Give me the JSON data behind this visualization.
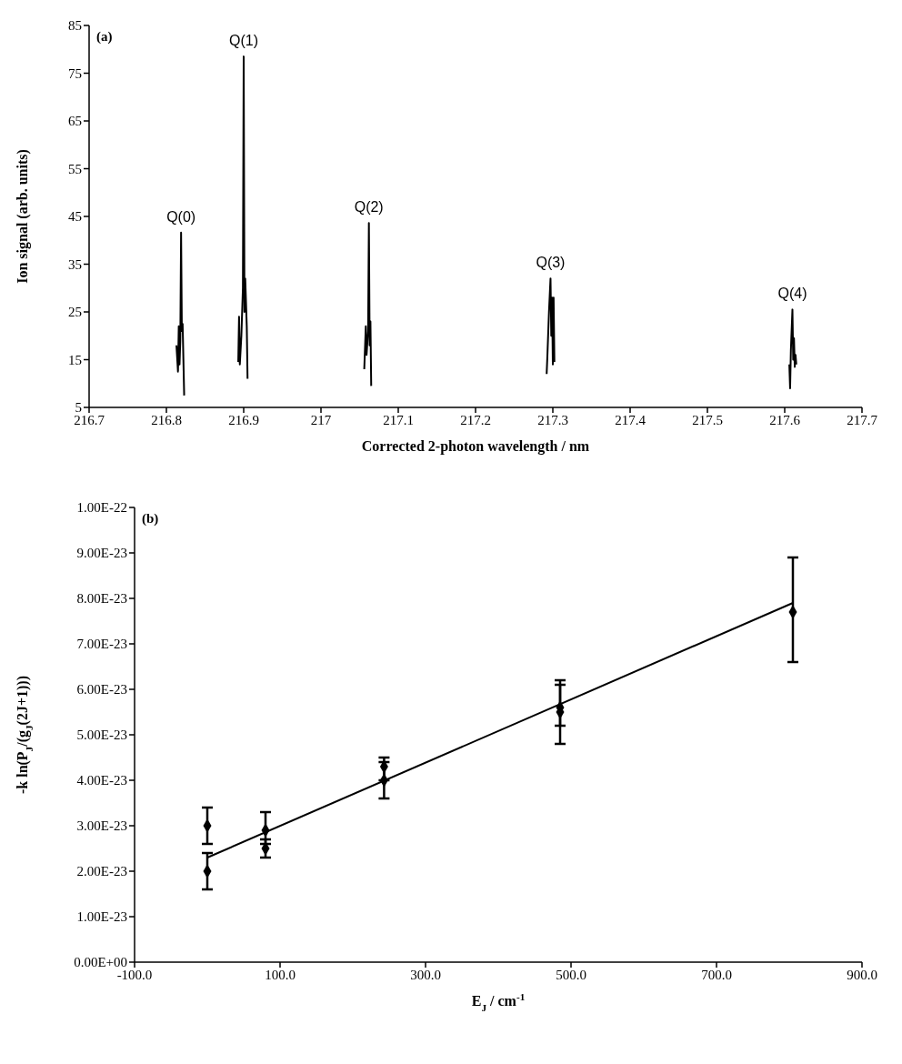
{
  "chart_data": [
    {
      "type": "line",
      "xlabel": "Corrected 2-photon wavelength / nm",
      "ylabel": "Ion signal (arb. units)",
      "color": "#000000",
      "marker": "none",
      "x": [
        216.813,
        216.815,
        216.816,
        216.817,
        216.818,
        216.819,
        216.82,
        216.821,
        216.822,
        216.823,
        216.86,
        216.893,
        216.894,
        216.895,
        216.897,
        216.899,
        216.9,
        216.901,
        216.902,
        216.904,
        216.905,
        216.98,
        217.056,
        217.058,
        217.059,
        217.061,
        217.062,
        217.063,
        217.064,
        217.065,
        217.2,
        217.292,
        217.293,
        217.295,
        217.297,
        217.298,
        217.299,
        217.3,
        217.301,
        217.302,
        217.45,
        217.606,
        217.607,
        217.608,
        217.61,
        217.611,
        217.612,
        217.613,
        217.614,
        217.615
      ],
      "values": [
        18,
        12.5,
        22,
        14,
        19,
        41.6,
        21,
        22.5,
        15,
        7.5,
        null,
        14.5,
        24,
        14,
        20,
        30,
        78.5,
        25,
        32,
        22,
        11,
        null,
        13,
        22,
        16,
        21,
        43.6,
        18,
        23,
        9.5,
        null,
        12,
        16,
        25,
        32,
        20,
        28,
        14,
        28,
        14.5,
        null,
        14,
        9,
        17,
        25.5,
        15,
        19.5,
        13.5,
        16,
        14
      ],
      "xlim": [
        216.7,
        217.7
      ],
      "xticks": [
        216.7,
        216.8,
        216.9,
        217,
        217.1,
        217.2,
        217.3,
        217.4,
        217.5,
        217.6,
        217.7
      ],
      "ylim": [
        5,
        85
      ],
      "yticks": [
        5,
        15,
        25,
        35,
        45,
        55,
        65,
        75,
        85
      ],
      "annotations": [
        "(a)",
        {
          "text": "Q(0)",
          "x": 216.819,
          "y": 41.6
        },
        {
          "text": "Q(1)",
          "x": 216.9,
          "y": 78.5
        },
        {
          "text": "Q(2)",
          "x": 217.062,
          "y": 43.6
        },
        {
          "text": "Q(3)",
          "x": 217.297,
          "y": 32
        },
        {
          "text": "Q(4)",
          "x": 217.61,
          "y": 25.5
        }
      ]
    },
    {
      "type": "scatter",
      "xlabel": "E$_{J}$ / cm$^{-1}$",
      "ylabel": "-k ln(P$_{J}$/(g$_{J}$(2J+1)))",
      "series": [
        {
          "color": "#000000",
          "marker": "diamond",
          "x": [
            0,
            0,
            80,
            80,
            243,
            243,
            485,
            485,
            805
          ],
          "values": [
            3e-23,
            2e-23,
            2.9e-23,
            2.5e-23,
            4.3e-23,
            4e-23,
            5.6e-23,
            5.5e-23,
            7.7e-23
          ],
          "errors": [
            [
              2.6e-23,
              3.4e-23
            ],
            [
              1.6e-23,
              2.4e-23
            ],
            [
              2.6e-23,
              3.3e-23
            ],
            [
              2.3e-23,
              2.7e-23
            ],
            [
              4e-23,
              4.5e-23
            ],
            [
              3.6e-23,
              4.4e-23
            ],
            [
              5.2e-23,
              6.2e-23
            ],
            [
              4.8e-23,
              6.1e-23
            ],
            [
              6.6e-23,
              8.9e-23
            ]
          ]
        },
        {
          "type": "line",
          "color": "#000000",
          "marker": "none",
          "x": [
            0,
            805
          ],
          "values": [
            2.3e-23,
            7.9e-23
          ]
        }
      ],
      "xlim": [
        -100,
        900
      ],
      "xticks": [
        {
          "value": -100,
          "label": "-100.0"
        },
        {
          "value": 100,
          "label": "100.0"
        },
        {
          "value": 300,
          "label": "300.0"
        },
        {
          "value": 500,
          "label": "500.0"
        },
        {
          "value": 700,
          "label": "700.0"
        },
        {
          "value": 900,
          "label": "900.0"
        }
      ],
      "ylim": [
        0,
        1e-22
      ],
      "yticks": [
        {
          "value": 0,
          "label": "0.00E+00"
        },
        {
          "value": 1e-23,
          "label": "1.00E-23"
        },
        {
          "value": 2e-23,
          "label": "2.00E-23"
        },
        {
          "value": 3e-23,
          "label": "3.00E-23"
        },
        {
          "value": 4e-23,
          "label": "4.00E-23"
        },
        {
          "value": 5e-23,
          "label": "5.00E-23"
        },
        {
          "value": 6e-23,
          "label": "6.00E-23"
        },
        {
          "value": 7e-23,
          "label": "7.00E-23"
        },
        {
          "value": 8e-23,
          "label": "8.00E-23"
        },
        {
          "value": 9e-23,
          "label": "9.00E-23"
        },
        {
          "value": 1e-22,
          "label": "1.00E-22"
        }
      ],
      "annotations": [
        "(b)"
      ]
    }
  ]
}
